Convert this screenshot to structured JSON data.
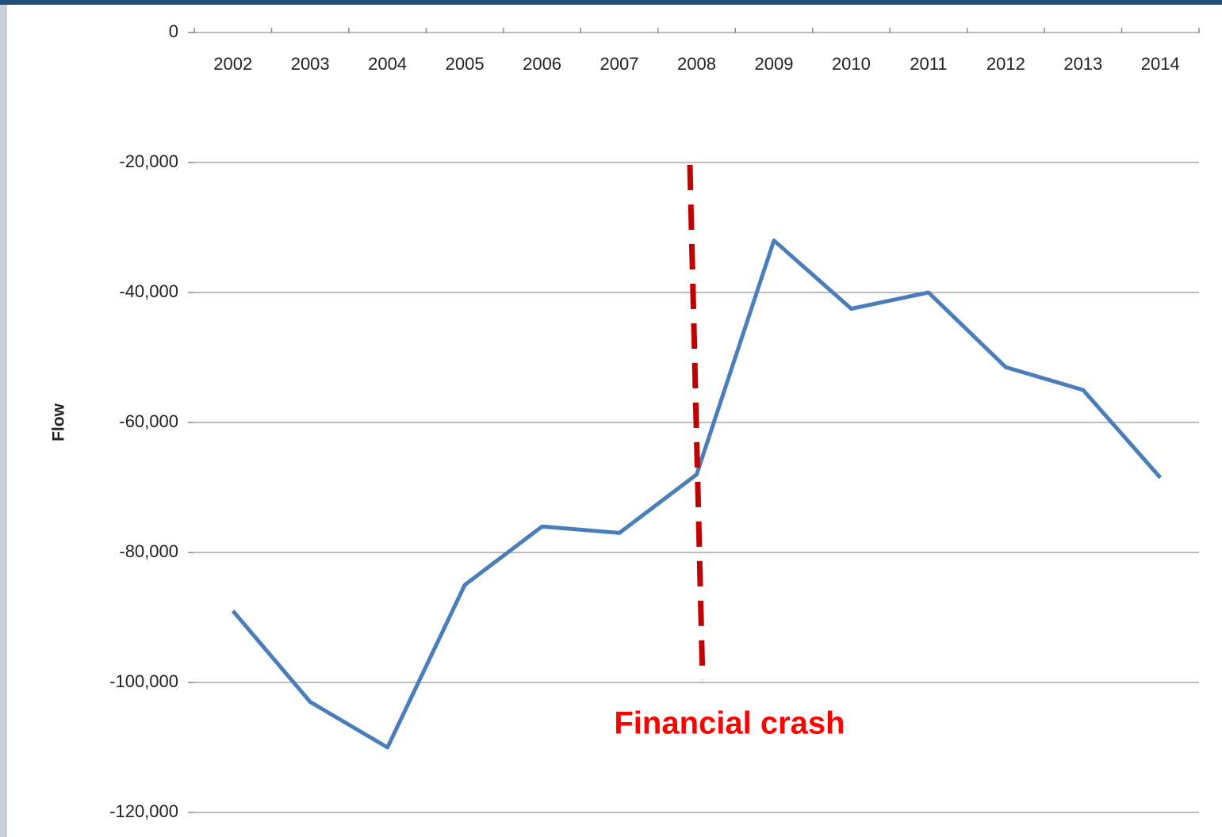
{
  "chart_data": {
    "type": "line",
    "y_label": "Flow",
    "annotation": "Financial crash",
    "categories": [
      "2002",
      "2003",
      "2004",
      "2005",
      "2006",
      "2007",
      "2008",
      "2009",
      "2010",
      "2011",
      "2012",
      "2013",
      "2014"
    ],
    "values": [
      -89000,
      -103000,
      -110000,
      -85000,
      -76000,
      -77000,
      -68000,
      -32000,
      -42500,
      -40000,
      -51500,
      -55000,
      -68500
    ],
    "color": "#4a7ebb",
    "ylim": [
      -120000,
      0
    ],
    "yticks": [
      {
        "value": -120000,
        "label": "-120,000"
      },
      {
        "value": -100000,
        "label": "-100,000"
      },
      {
        "value": -80000,
        "label": "-80,000"
      },
      {
        "value": -60000,
        "label": "-60,000"
      },
      {
        "value": -40000,
        "label": "-40,000"
      },
      {
        "value": -20000,
        "label": "-20,000"
      },
      0
    ],
    "grid": true
  }
}
